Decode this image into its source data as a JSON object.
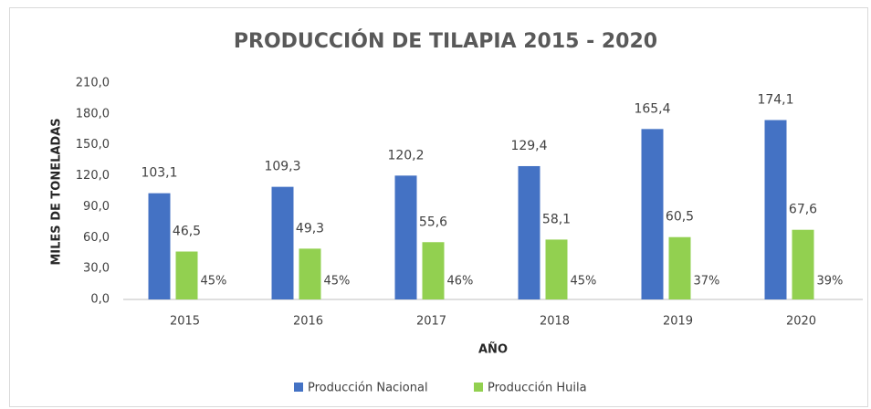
{
  "chart_data": {
    "type": "bar",
    "title": "PRODUCCIÓN DE TILAPIA 2015 - 2020",
    "x_label": "AÑO",
    "y_label": "MILES DE TONELADAS",
    "categories": [
      "2015",
      "2016",
      "2017",
      "2018",
      "2019",
      "2020"
    ],
    "series": [
      {
        "name": "Producción Nacional",
        "color": "#4472c4",
        "values": [
          103.1,
          109.3,
          120.2,
          129.4,
          165.4,
          174.1
        ],
        "value_labels": [
          "103,1",
          "109,3",
          "120,2",
          "129,4",
          "165,4",
          "174,1"
        ]
      },
      {
        "name": "Producción Huila",
        "color": "#92d050",
        "values": [
          46.5,
          49.3,
          55.6,
          58.1,
          60.5,
          67.6
        ],
        "value_labels": [
          "46,5",
          "49,3",
          "55,6",
          "58,1",
          "60,5",
          "67,6"
        ]
      }
    ],
    "annotations": [
      "45%",
      "45%",
      "46%",
      "45%",
      "37%",
      "39%"
    ],
    "ylim": [
      0,
      210
    ],
    "yticks": [
      {
        "value": 0,
        "label": "0,0"
      },
      {
        "value": 30,
        "label": "30,0"
      },
      {
        "value": 60,
        "label": "60,0"
      },
      {
        "value": 90,
        "label": "90,0"
      },
      {
        "value": 120,
        "label": "120,0"
      },
      {
        "value": 150,
        "label": "150,0"
      },
      {
        "value": 180,
        "label": "180,0"
      },
      {
        "value": 210,
        "label": "210,0"
      }
    ],
    "grid": false,
    "legend": "bottom"
  }
}
